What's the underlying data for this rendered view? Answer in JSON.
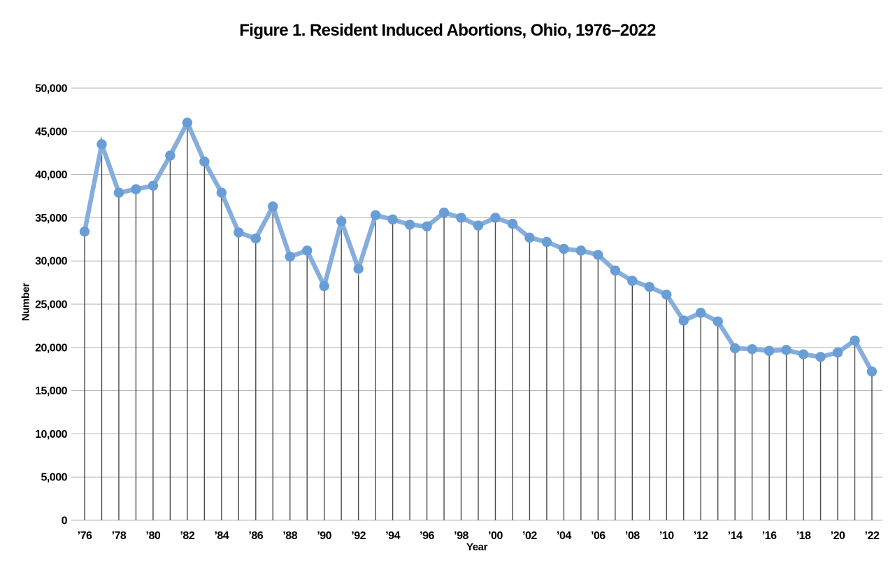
{
  "title": "Figure 1. Resident Induced Abortions, Ohio, 1976–2022",
  "chart_data": {
    "type": "line",
    "title": "Figure 1. Resident Induced Abortions, Ohio, 1976–2022",
    "xlabel": "Year",
    "ylabel": "Number",
    "ylim": [
      0,
      50000
    ],
    "ytick_step": 5000,
    "ytick_labels": [
      "0",
      "5,000",
      "10,000",
      "15,000",
      "20,000",
      "25,000",
      "30,000",
      "35,000",
      "40,000",
      "45,000",
      "50,000"
    ],
    "x": [
      1976,
      1977,
      1978,
      1979,
      1980,
      1981,
      1982,
      1983,
      1984,
      1985,
      1986,
      1987,
      1988,
      1989,
      1990,
      1991,
      1992,
      1993,
      1994,
      1995,
      1996,
      1997,
      1998,
      1999,
      2000,
      2001,
      2002,
      2003,
      2004,
      2005,
      2006,
      2007,
      2008,
      2009,
      2010,
      2011,
      2012,
      2013,
      2014,
      2015,
      2016,
      2017,
      2018,
      2019,
      2020,
      2021,
      2022
    ],
    "values": [
      33400,
      43500,
      37900,
      38300,
      38700,
      42200,
      46000,
      41500,
      37900,
      33300,
      32600,
      36300,
      30500,
      31200,
      27100,
      34600,
      29100,
      35300,
      34800,
      34200,
      34000,
      35600,
      35000,
      34100,
      35000,
      34300,
      32700,
      32200,
      31400,
      31200,
      30700,
      28900,
      27700,
      27000,
      26100,
      23100,
      24000,
      23000,
      19900,
      19800,
      19600,
      19700,
      19200,
      18900,
      19400,
      20800,
      17200
    ],
    "xtick_years": [
      1976,
      1978,
      1980,
      1982,
      1984,
      1986,
      1988,
      1990,
      1992,
      1994,
      1996,
      1998,
      2000,
      2002,
      2004,
      2006,
      2008,
      2010,
      2012,
      2014,
      2016,
      2018,
      2020,
      2022
    ],
    "xtick_labels": [
      "’76",
      "’78",
      "’80",
      "’82",
      "’84",
      "’86",
      "’88",
      "’90",
      "’92",
      "’94",
      "’96",
      "’98",
      "’00",
      "’02",
      "’04",
      "’06",
      "’08",
      "’10",
      "’12",
      "’14",
      "’16",
      "’18",
      "’20",
      "’22"
    ],
    "grid": "horizontal",
    "legend": "none",
    "marker": "circle",
    "drop_lines": true,
    "colors": {
      "line": "#85aedd",
      "marker": "#689dd6",
      "stem": "#4a4a4a",
      "grid": "#b0b0b0",
      "text": "#000000"
    }
  }
}
